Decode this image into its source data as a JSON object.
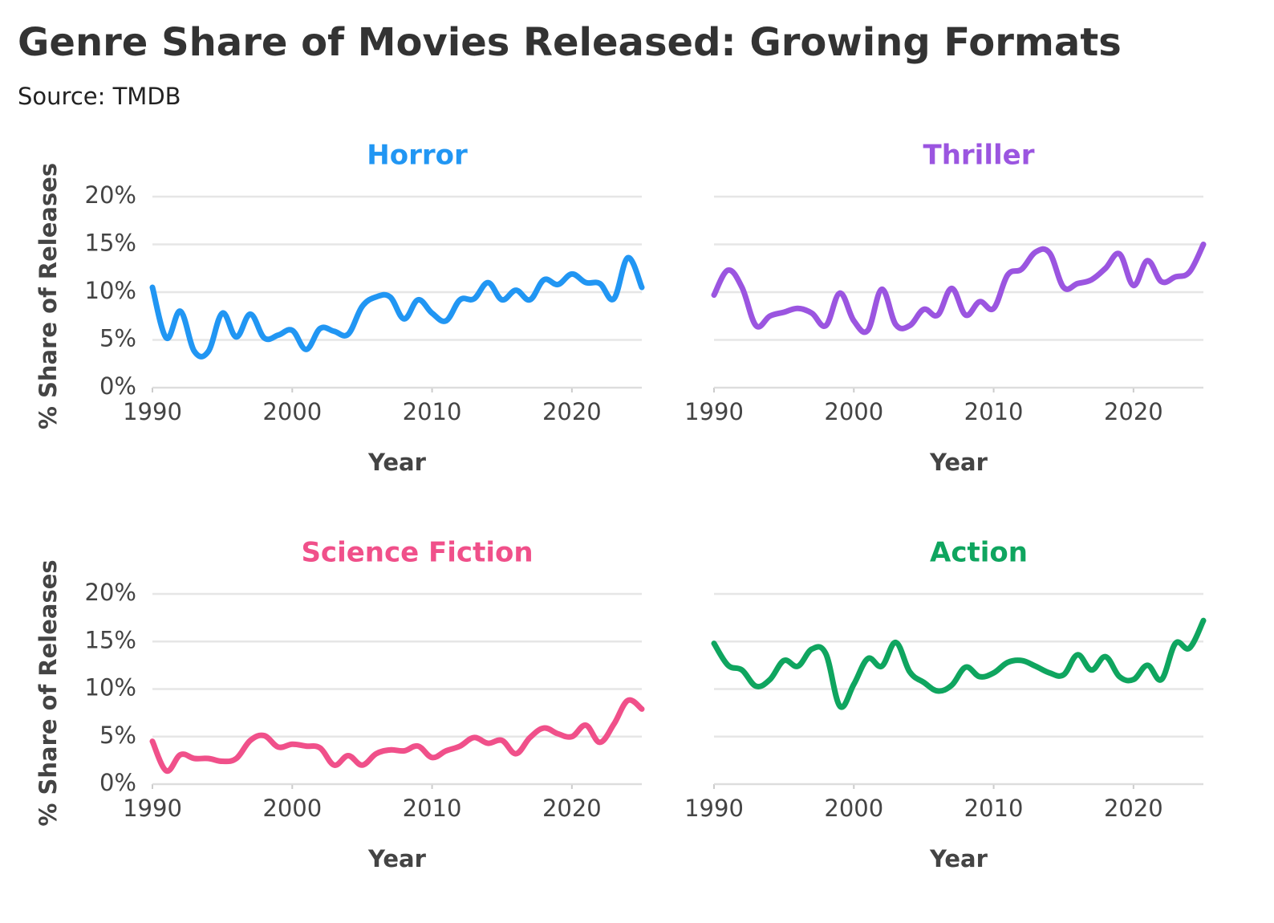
{
  "title": "Genre Share of Movies Released: Growing Formats",
  "subtitle": "Source: TMDB",
  "chart_data": [
    {
      "type": "line",
      "title": "Horror",
      "color": "#2196f3",
      "xlabel": "Year",
      "ylabel": "% Share of Releases",
      "show_ytick_labels": true,
      "x": [
        1990,
        1991,
        1992,
        1993,
        1994,
        1995,
        1996,
        1997,
        1998,
        1999,
        2000,
        2001,
        2002,
        2003,
        2004,
        2005,
        2006,
        2007,
        2008,
        2009,
        2010,
        2011,
        2012,
        2013,
        2014,
        2015,
        2016,
        2017,
        2018,
        2019,
        2020,
        2021,
        2022,
        2023,
        2024,
        2025
      ],
      "values": [
        10.5,
        5.2,
        8,
        3.8,
        3.8,
        7.8,
        5.3,
        7.7,
        5.2,
        5.5,
        6,
        4,
        6.2,
        5.9,
        5.6,
        8.5,
        9.5,
        9.5,
        7.2,
        9.2,
        7.8,
        7,
        9.2,
        9.3,
        11,
        9.2,
        10.2,
        9.2,
        11.3,
        10.8,
        11.9,
        11,
        10.9,
        9.3,
        13.6,
        10.5
      ],
      "xlim": [
        1990,
        2025
      ],
      "xticks": [
        1990,
        2000,
        2010,
        2020
      ],
      "ylim": [
        0,
        20
      ],
      "yticks": [
        {
          "value": 0,
          "label": "0%"
        },
        {
          "value": 5,
          "label": "5%"
        },
        {
          "value": 10,
          "label": "10%"
        },
        {
          "value": 15,
          "label": "15%"
        },
        {
          "value": 20,
          "label": "20%"
        }
      ],
      "grid": true
    },
    {
      "type": "line",
      "title": "Thriller",
      "color": "#9b55e0",
      "xlabel": "Year",
      "show_ytick_labels": false,
      "x": [
        1990,
        1991,
        1992,
        1993,
        1994,
        1995,
        1996,
        1997,
        1998,
        1999,
        2000,
        2001,
        2002,
        2003,
        2004,
        2005,
        2006,
        2007,
        2008,
        2009,
        2010,
        2011,
        2012,
        2013,
        2014,
        2015,
        2016,
        2017,
        2018,
        2019,
        2020,
        2021,
        2022,
        2023,
        2024,
        2025
      ],
      "values": [
        9.7,
        12.3,
        10.5,
        6.5,
        7.5,
        7.9,
        8.3,
        7.8,
        6.5,
        9.9,
        7,
        6,
        10.3,
        6.6,
        6.5,
        8.2,
        7.6,
        10.4,
        7.6,
        9,
        8.3,
        11.8,
        12.4,
        14.2,
        14.1,
        10.5,
        10.9,
        11.3,
        12.5,
        14,
        10.7,
        13.3,
        11.1,
        11.6,
        12.1,
        15
      ],
      "xlim": [
        1990,
        2025
      ],
      "xticks": [
        1990,
        2000,
        2010,
        2020
      ],
      "ylim": [
        0,
        20
      ],
      "yticks": [
        0,
        5,
        10,
        15,
        20
      ],
      "grid": true
    },
    {
      "type": "line",
      "title": "Science Fiction",
      "color": "#f0508a",
      "xlabel": "Year",
      "ylabel": "% Share of Releases",
      "show_ytick_labels": true,
      "x": [
        1990,
        1991,
        1992,
        1993,
        1994,
        1995,
        1996,
        1997,
        1998,
        1999,
        2000,
        2001,
        2002,
        2003,
        2004,
        2005,
        2006,
        2007,
        2008,
        2009,
        2010,
        2011,
        2012,
        2013,
        2014,
        2015,
        2016,
        2017,
        2018,
        2019,
        2020,
        2021,
        2022,
        2023,
        2024,
        2025
      ],
      "values": [
        4.5,
        1.4,
        3.1,
        2.7,
        2.7,
        2.4,
        2.7,
        4.6,
        5.1,
        3.9,
        4.2,
        4,
        3.8,
        2,
        3,
        2,
        3.2,
        3.6,
        3.5,
        4,
        2.8,
        3.5,
        4,
        4.9,
        4.3,
        4.6,
        3.2,
        4.9,
        5.9,
        5.3,
        5,
        6.2,
        4.4,
        6.3,
        8.8,
        7.9
      ],
      "xlim": [
        1990,
        2025
      ],
      "xticks": [
        1990,
        2000,
        2010,
        2020
      ],
      "ylim": [
        0,
        20
      ],
      "yticks": [
        {
          "value": 0,
          "label": "0%"
        },
        {
          "value": 5,
          "label": "5%"
        },
        {
          "value": 10,
          "label": "10%"
        },
        {
          "value": 15,
          "label": "15%"
        },
        {
          "value": 20,
          "label": "20%"
        }
      ],
      "grid": true
    },
    {
      "type": "line",
      "title": "Action",
      "color": "#0fa55f",
      "xlabel": "Year",
      "show_ytick_labels": false,
      "x": [
        1990,
        1991,
        1992,
        1993,
        1994,
        1995,
        1996,
        1997,
        1998,
        1999,
        2000,
        2001,
        2002,
        2003,
        2004,
        2005,
        2006,
        2007,
        2008,
        2009,
        2010,
        2011,
        2012,
        2013,
        2014,
        2015,
        2016,
        2017,
        2018,
        2019,
        2020,
        2021,
        2022,
        2023,
        2024,
        2025
      ],
      "values": [
        14.8,
        12.5,
        12,
        10.3,
        11,
        13,
        12.4,
        14.2,
        13.7,
        8.2,
        10.5,
        13.2,
        12.4,
        14.9,
        11.8,
        10.7,
        9.8,
        10.4,
        12.3,
        11.3,
        11.7,
        12.8,
        13,
        12.4,
        11.7,
        11.5,
        13.6,
        12,
        13.4,
        11.3,
        11,
        12.5,
        11,
        14.8,
        14.3,
        17.2
      ],
      "xlim": [
        1990,
        2025
      ],
      "xticks": [
        1990,
        2000,
        2010,
        2020
      ],
      "ylim": [
        0,
        20
      ],
      "yticks": [
        0,
        5,
        10,
        15,
        20
      ],
      "grid": true
    }
  ]
}
